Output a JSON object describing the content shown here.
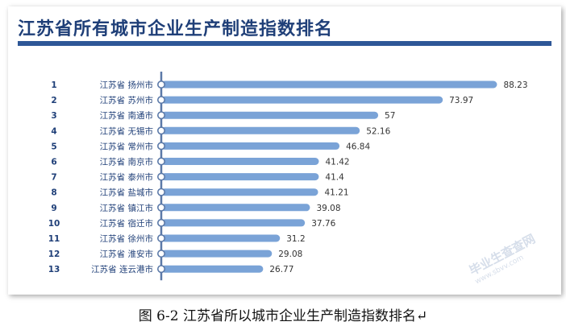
{
  "chart_data": {
    "type": "bar",
    "orientation": "horizontal",
    "title": "江苏省所有城市企业生产制造指数排名",
    "ranks": [
      "1",
      "2",
      "3",
      "4",
      "5",
      "6",
      "7",
      "8",
      "9",
      "10",
      "11",
      "12",
      "13"
    ],
    "categories": [
      "江苏省 扬州市",
      "江苏省 苏州市",
      "江苏省 南通市",
      "江苏省 无锡市",
      "江苏省 常州市",
      "江苏省 南京市",
      "江苏省 泰州市",
      "江苏省 盐城市",
      "江苏省 镇江市",
      "江苏省 宿迁市",
      "江苏省 徐州市",
      "江苏省 淮安市",
      "江苏省 连云港市"
    ],
    "values": [
      88.23,
      73.97,
      57,
      52.16,
      46.84,
      41.42,
      41.4,
      41.21,
      39.08,
      37.76,
      31.2,
      29.08,
      26.77
    ],
    "value_labels": [
      "88.23",
      "73.97",
      "57",
      "52.16",
      "46.84",
      "41.42",
      "41.4",
      "41.21",
      "39.08",
      "37.76",
      "31.2",
      "29.08",
      "26.77"
    ],
    "xlim": [
      0,
      100
    ],
    "grid": false,
    "colors": {
      "bar": "#7aa3d7",
      "axis": "#5b79a8",
      "title": "#1f3f78",
      "rank_text": "#1f3f78",
      "label_text": "#1f3f78",
      "value_text": "#333333"
    }
  },
  "caption": "图 6-2 江苏省所以城市企业生产制造指数排名↵",
  "watermark": {
    "text": "毕业生查查网",
    "url": "www.sbvv.com"
  }
}
